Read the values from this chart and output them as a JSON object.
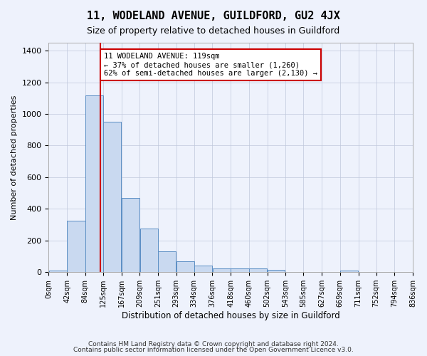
{
  "title": "11, WODELAND AVENUE, GUILDFORD, GU2 4JX",
  "subtitle": "Size of property relative to detached houses in Guildford",
  "xlabel": "Distribution of detached houses by size in Guildford",
  "ylabel": "Number of detached properties",
  "tick_labels": [
    "0sqm",
    "42sqm",
    "84sqm",
    "125sqm",
    "167sqm",
    "209sqm",
    "251sqm",
    "293sqm",
    "334sqm",
    "376sqm",
    "418sqm",
    "460sqm",
    "502sqm",
    "543sqm",
    "585sqm",
    "627sqm",
    "669sqm",
    "711sqm",
    "752sqm",
    "794sqm",
    "836sqm"
  ],
  "bar_edges": [
    0,
    42,
    84,
    125,
    167,
    209,
    251,
    293,
    334,
    376,
    418,
    460,
    502,
    543,
    585,
    627,
    669,
    711,
    752,
    794,
    836
  ],
  "bar_heights": [
    10,
    325,
    1115,
    950,
    470,
    275,
    130,
    70,
    42,
    25,
    25,
    25,
    15,
    0,
    0,
    0,
    10,
    0,
    0,
    0
  ],
  "property_value": 119,
  "annotation_text": "11 WODELAND AVENUE: 119sqm\n← 37% of detached houses are smaller (1,260)\n62% of semi-detached houses are larger (2,130) →",
  "vline_x": 119,
  "bar_color": "#c9d9f0",
  "bar_edge_color": "#5b8ec4",
  "vline_color": "#cc0000",
  "annotation_box_edge": "#cc0000",
  "annotation_box_face": "#ffffff",
  "background_color": "#eef2fc",
  "ylim": [
    0,
    1450
  ],
  "footer_line1": "Contains HM Land Registry data © Crown copyright and database right 2024.",
  "footer_line2": "Contains public sector information licensed under the Open Government Licence v3.0."
}
